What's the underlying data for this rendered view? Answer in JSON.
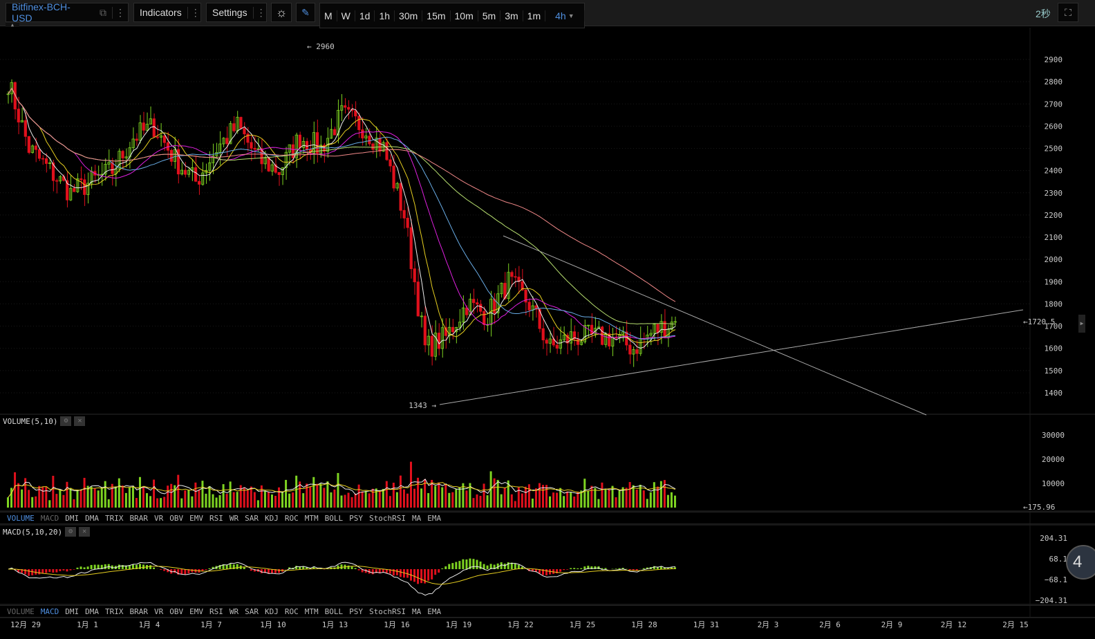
{
  "toolbar": {
    "symbol": "Bitfinex-BCH-USD",
    "indicators": "Indicators",
    "settings": "Settings",
    "periods": [
      "M",
      "W",
      "1d",
      "1h",
      "30m",
      "15m",
      "10m",
      "5m",
      "3m",
      "1m"
    ],
    "active_period": "4h",
    "refresh": "2秒"
  },
  "colors": {
    "up": "#7ed321",
    "down": "#e0101c",
    "accent": "#4f8fe0"
  },
  "volume_pane": {
    "title": "VOLUME(5,10)",
    "last": "←175.96",
    "ticks": [
      "30000",
      "20000",
      "10000"
    ]
  },
  "macd_pane": {
    "title": "MACD(5,10,20)",
    "ticks": [
      "204.31",
      "68.1",
      "−68.1",
      "−204.31"
    ]
  },
  "indicator_tabs": [
    "VOLUME",
    "MACD",
    "DMI",
    "DMA",
    "TRIX",
    "BRAR",
    "VR",
    "OBV",
    "EMV",
    "RSI",
    "WR",
    "SAR",
    "KDJ",
    "ROC",
    "MTM",
    "BOLL",
    "PSY",
    "StochRSI",
    "MA",
    "EMA"
  ],
  "badge": "4",
  "chart_data": {
    "type": "candlestick",
    "interval": "4h",
    "ylim": [
      1343,
      2960
    ],
    "y_ticks": [
      "2900",
      "2800",
      "2700",
      "2600",
      "2500",
      "2400",
      "2300",
      "2200",
      "2100",
      "2000",
      "1900",
      "1800",
      "1700",
      "1600",
      "1500",
      "1400"
    ],
    "x_ticks": [
      "12月 29",
      "1月 1",
      "1月 4",
      "1月 7",
      "1月 10",
      "1月 13",
      "1月 16",
      "1月 19",
      "1月 22",
      "1月 25",
      "1月 28",
      "1月 31",
      "2月 3",
      "2月 6",
      "2月 9",
      "2月 12",
      "2月 15"
    ],
    "daily_close": [
      2800,
      2500,
      2400,
      2300,
      2350,
      2400,
      2550,
      2600,
      2450,
      2350,
      2500,
      2600,
      2450,
      2400,
      2550,
      2500,
      2650,
      2600,
      2500,
      2200,
      1600,
      1650,
      1800,
      1750,
      1900,
      1800,
      1600,
      1650,
      1650,
      1650,
      1600,
      1680,
      1720.5
    ],
    "high_label": "← 2960",
    "low_label": "1343 →",
    "last_price": "←1720.5",
    "trendlines": [
      {
        "from": [
          "1月 17",
          1343
        ],
        "to": [
          "2月 15",
          1775
        ]
      },
      {
        "from": [
          "1月 21",
          2110
        ],
        "to": [
          "2月 10",
          1330
        ]
      }
    ]
  }
}
